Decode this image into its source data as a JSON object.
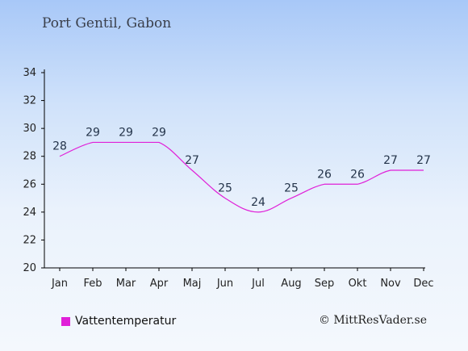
{
  "header": {
    "title": "Port Gentil, Gabon"
  },
  "legend": {
    "label": "Vattentemperatur"
  },
  "footer": {
    "credit": "© MittResVader.se"
  },
  "colors": {
    "series": "#e020d8",
    "axis": "#000000",
    "text": "#24344a"
  },
  "chart_data": {
    "type": "line",
    "categories": [
      "Jan",
      "Feb",
      "Mar",
      "Apr",
      "Maj",
      "Jun",
      "Jul",
      "Aug",
      "Sep",
      "Okt",
      "Nov",
      "Dec"
    ],
    "series": [
      {
        "name": "Vattentemperatur",
        "values": [
          28,
          29,
          29,
          29,
          27,
          25,
          24,
          25,
          26,
          26,
          27,
          27
        ]
      }
    ],
    "ylim": [
      20,
      34
    ],
    "yticks": [
      20,
      22,
      24,
      26,
      28,
      30,
      32,
      34
    ],
    "grid": false,
    "legend_position": "bottom-left"
  }
}
